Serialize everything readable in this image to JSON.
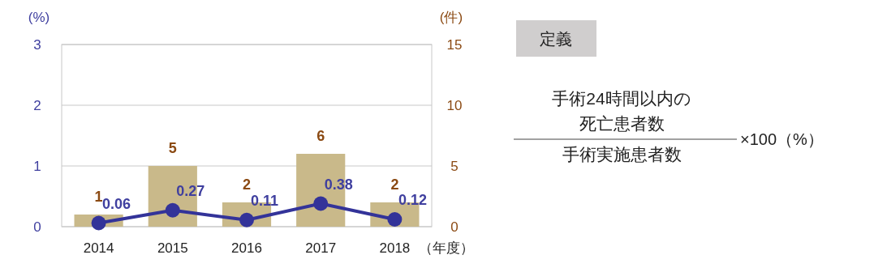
{
  "chart_data": [
    {
      "type": "bar",
      "categories": [
        "2014",
        "2015",
        "2016",
        "2017",
        "2018"
      ],
      "xlabel": "（年度）",
      "ylabel": "(%)",
      "y2label": "(件)",
      "series": [
        {
          "type": "bar",
          "axis": "y2",
          "color": "#c9b98a",
          "values": [
            1,
            5,
            2,
            6,
            2
          ]
        },
        {
          "type": "line",
          "axis": "y",
          "color": "#333399",
          "marker": "circle",
          "values": [
            0.06,
            0.27,
            0.11,
            0.38,
            0.12
          ]
        }
      ],
      "ylim": [
        0,
        3
      ],
      "yticks": [
        0,
        1,
        2,
        3
      ],
      "y2lim": [
        0,
        15
      ],
      "y2ticks": [
        0,
        5,
        10,
        15
      ],
      "grid": "y",
      "data_labels": true
    },
    {
      "type": "other",
      "title": "定義",
      "annotations": [
        "手術24時間以内の",
        "死亡患者数",
        "手術実施患者数",
        "×100（%）"
      ]
    }
  ]
}
